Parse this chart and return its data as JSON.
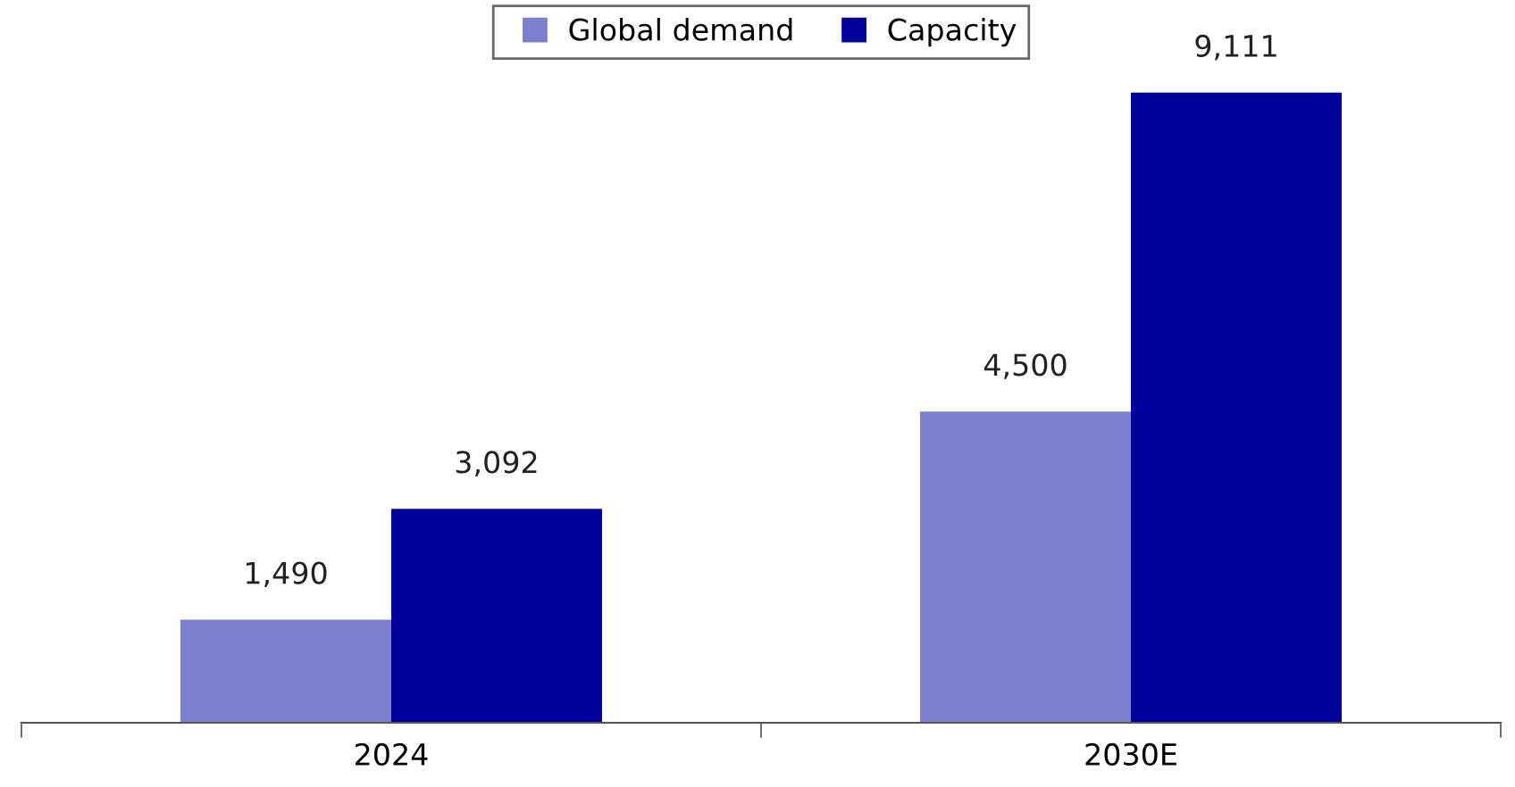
{
  "chart_data": {
    "type": "bar",
    "categories": [
      "2024",
      "2030E"
    ],
    "series": [
      {
        "name": "Global demand",
        "color": "#7b7fcf",
        "values": [
          1490,
          4500
        ],
        "value_labels": [
          "1,490",
          "4,500"
        ]
      },
      {
        "name": "Capacity",
        "color": "#00009a",
        "values": [
          3092,
          9111
        ],
        "value_labels": [
          "3,092",
          "9,111"
        ]
      }
    ],
    "legend": "top",
    "grid": false
  }
}
